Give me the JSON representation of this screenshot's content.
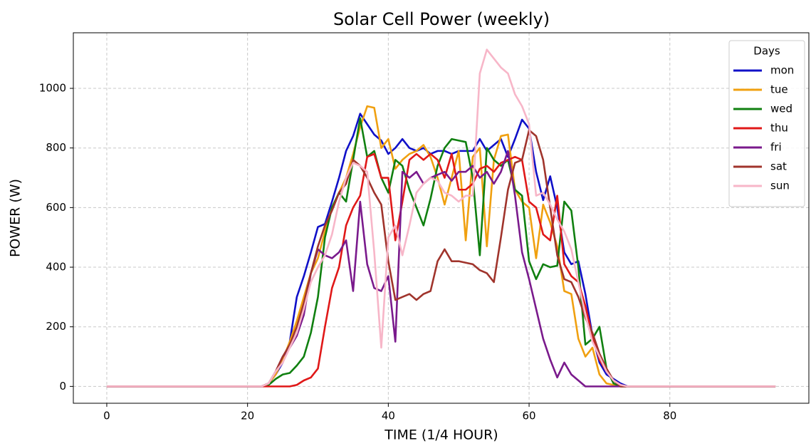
{
  "chart_data": {
    "type": "line",
    "title": "Solar Cell Power (weekly)",
    "xlabel": "TIME (1/4 HOUR)",
    "ylabel": "POWER (W)",
    "x": [
      0,
      1,
      2,
      3,
      4,
      5,
      6,
      7,
      8,
      9,
      10,
      11,
      12,
      13,
      14,
      15,
      16,
      17,
      18,
      19,
      20,
      21,
      22,
      23,
      24,
      25,
      26,
      27,
      28,
      29,
      30,
      31,
      32,
      33,
      34,
      35,
      36,
      37,
      38,
      39,
      40,
      41,
      42,
      43,
      44,
      45,
      46,
      47,
      48,
      49,
      50,
      51,
      52,
      53,
      54,
      55,
      56,
      57,
      58,
      59,
      60,
      61,
      62,
      63,
      64,
      65,
      66,
      67,
      68,
      69,
      70,
      71,
      72,
      73,
      74,
      75,
      76,
      77,
      78,
      79,
      80,
      81,
      82,
      83,
      84,
      85,
      86,
      87,
      88,
      89,
      90,
      91,
      92,
      93,
      94,
      95
    ],
    "series": [
      {
        "name": "mon",
        "color": "#1010c8",
        "values": [
          0,
          0,
          0,
          0,
          0,
          0,
          0,
          0,
          0,
          0,
          0,
          0,
          0,
          0,
          0,
          0,
          0,
          0,
          0,
          0,
          0,
          0,
          0,
          10,
          40,
          80,
          150,
          300,
          370,
          450,
          535,
          545,
          620,
          700,
          790,
          840,
          915,
          880,
          845,
          825,
          780,
          800,
          830,
          800,
          790,
          800,
          780,
          790,
          790,
          780,
          790,
          790,
          790,
          830,
          790,
          810,
          830,
          770,
          830,
          895,
          865,
          720,
          625,
          705,
          600,
          450,
          410,
          420,
          310,
          170,
          80,
          40,
          25,
          10,
          0,
          0,
          0,
          0,
          0,
          0,
          0,
          0,
          0,
          0,
          0,
          0,
          0,
          0,
          0,
          0,
          0,
          0,
          0,
          0,
          0,
          0
        ]
      },
      {
        "name": "tue",
        "color": "#f0a010",
        "values": [
          0,
          0,
          0,
          0,
          0,
          0,
          0,
          0,
          0,
          0,
          0,
          0,
          0,
          0,
          0,
          0,
          0,
          0,
          0,
          0,
          0,
          0,
          0,
          10,
          40,
          90,
          150,
          220,
          300,
          380,
          430,
          520,
          600,
          650,
          700,
          780,
          870,
          940,
          935,
          800,
          830,
          730,
          760,
          780,
          790,
          810,
          770,
          700,
          610,
          700,
          790,
          490,
          770,
          800,
          470,
          760,
          840,
          845,
          660,
          620,
          600,
          430,
          610,
          550,
          470,
          320,
          310,
          160,
          100,
          130,
          40,
          10,
          5,
          0,
          0,
          0,
          0,
          0,
          0,
          0,
          0,
          0,
          0,
          0,
          0,
          0,
          0,
          0,
          0,
          0,
          0,
          0,
          0,
          0,
          0,
          0
        ]
      },
      {
        "name": "wed",
        "color": "#108010",
        "values": [
          0,
          0,
          0,
          0,
          0,
          0,
          0,
          0,
          0,
          0,
          0,
          0,
          0,
          0,
          0,
          0,
          0,
          0,
          0,
          0,
          0,
          0,
          0,
          5,
          25,
          40,
          45,
          70,
          100,
          180,
          300,
          500,
          600,
          650,
          620,
          760,
          900,
          770,
          790,
          700,
          650,
          760,
          740,
          660,
          600,
          540,
          630,
          740,
          800,
          830,
          825,
          820,
          700,
          440,
          800,
          760,
          740,
          760,
          660,
          640,
          420,
          360,
          410,
          400,
          405,
          620,
          590,
          400,
          140,
          160,
          200,
          60,
          10,
          0,
          0,
          0,
          0,
          0,
          0,
          0,
          0,
          0,
          0,
          0,
          0,
          0,
          0,
          0,
          0,
          0,
          0,
          0,
          0,
          0,
          0,
          0
        ]
      },
      {
        "name": "thu",
        "color": "#e01818",
        "values": [
          0,
          0,
          0,
          0,
          0,
          0,
          0,
          0,
          0,
          0,
          0,
          0,
          0,
          0,
          0,
          0,
          0,
          0,
          0,
          0,
          0,
          0,
          0,
          0,
          0,
          0,
          0,
          5,
          20,
          30,
          60,
          200,
          330,
          400,
          540,
          600,
          640,
          770,
          780,
          700,
          700,
          490,
          620,
          760,
          780,
          760,
          780,
          760,
          700,
          780,
          660,
          660,
          680,
          730,
          740,
          720,
          750,
          760,
          770,
          760,
          620,
          600,
          510,
          490,
          640,
          410,
          370,
          350,
          270,
          170,
          90,
          50,
          20,
          5,
          0,
          0,
          0,
          0,
          0,
          0,
          0,
          0,
          0,
          0,
          0,
          0,
          0,
          0,
          0,
          0,
          0,
          0,
          0,
          0,
          0,
          0
        ]
      },
      {
        "name": "fri",
        "color": "#7a1a8c",
        "values": [
          0,
          0,
          0,
          0,
          0,
          0,
          0,
          0,
          0,
          0,
          0,
          0,
          0,
          0,
          0,
          0,
          0,
          0,
          0,
          0,
          0,
          0,
          0,
          10,
          50,
          100,
          130,
          170,
          240,
          380,
          460,
          440,
          430,
          450,
          490,
          320,
          620,
          410,
          330,
          320,
          370,
          150,
          720,
          700,
          720,
          680,
          700,
          710,
          720,
          690,
          720,
          720,
          740,
          700,
          720,
          680,
          720,
          790,
          640,
          450,
          360,
          260,
          160,
          90,
          30,
          80,
          40,
          20,
          0,
          0,
          0,
          0,
          0,
          0,
          0,
          0,
          0,
          0,
          0,
          0,
          0,
          0,
          0,
          0,
          0,
          0,
          0,
          0,
          0,
          0,
          0,
          0,
          0,
          0,
          0,
          0
        ]
      },
      {
        "name": "sat",
        "color": "#a0342c",
        "values": [
          0,
          0,
          0,
          0,
          0,
          0,
          0,
          0,
          0,
          0,
          0,
          0,
          0,
          0,
          0,
          0,
          0,
          0,
          0,
          0,
          0,
          0,
          0,
          10,
          50,
          100,
          140,
          200,
          280,
          380,
          470,
          540,
          590,
          650,
          680,
          760,
          740,
          700,
          650,
          610,
          420,
          290,
          300,
          310,
          290,
          310,
          320,
          420,
          460,
          420,
          420,
          415,
          410,
          390,
          380,
          350,
          500,
          660,
          750,
          760,
          860,
          840,
          760,
          600,
          440,
          360,
          350,
          300,
          230,
          180,
          110,
          60,
          20,
          0,
          0,
          0,
          0,
          0,
          0,
          0,
          0,
          0,
          0,
          0,
          0,
          0,
          0,
          0,
          0,
          0,
          0,
          0,
          0,
          0,
          0,
          0
        ]
      },
      {
        "name": "sun",
        "color": "#f7b6c8",
        "values": [
          0,
          0,
          0,
          0,
          0,
          0,
          0,
          0,
          0,
          0,
          0,
          0,
          0,
          0,
          0,
          0,
          0,
          0,
          0,
          0,
          0,
          0,
          0,
          10,
          50,
          80,
          130,
          180,
          260,
          350,
          400,
          440,
          510,
          620,
          700,
          750,
          740,
          720,
          450,
          130,
          500,
          540,
          440,
          540,
          650,
          680,
          700,
          690,
          650,
          640,
          620,
          640,
          640,
          1050,
          1130,
          1100,
          1070,
          1050,
          980,
          940,
          880,
          640,
          650,
          610,
          560,
          520,
          460,
          350,
          240,
          150,
          100,
          50,
          20,
          5,
          0,
          0,
          0,
          0,
          0,
          0,
          0,
          0,
          0,
          0,
          0,
          0,
          0,
          0,
          0,
          0,
          0,
          0,
          0,
          0,
          0,
          0
        ]
      }
    ],
    "xlim": [
      -4.75,
      99.75
    ],
    "xticks": [
      0,
      20,
      40,
      60,
      80
    ],
    "ylim": [
      -56.5,
      1186.5
    ],
    "yticks": [
      0,
      200,
      400,
      600,
      800,
      1000
    ],
    "grid": true,
    "legend_title": "Days",
    "legend_loc": "upper right"
  }
}
